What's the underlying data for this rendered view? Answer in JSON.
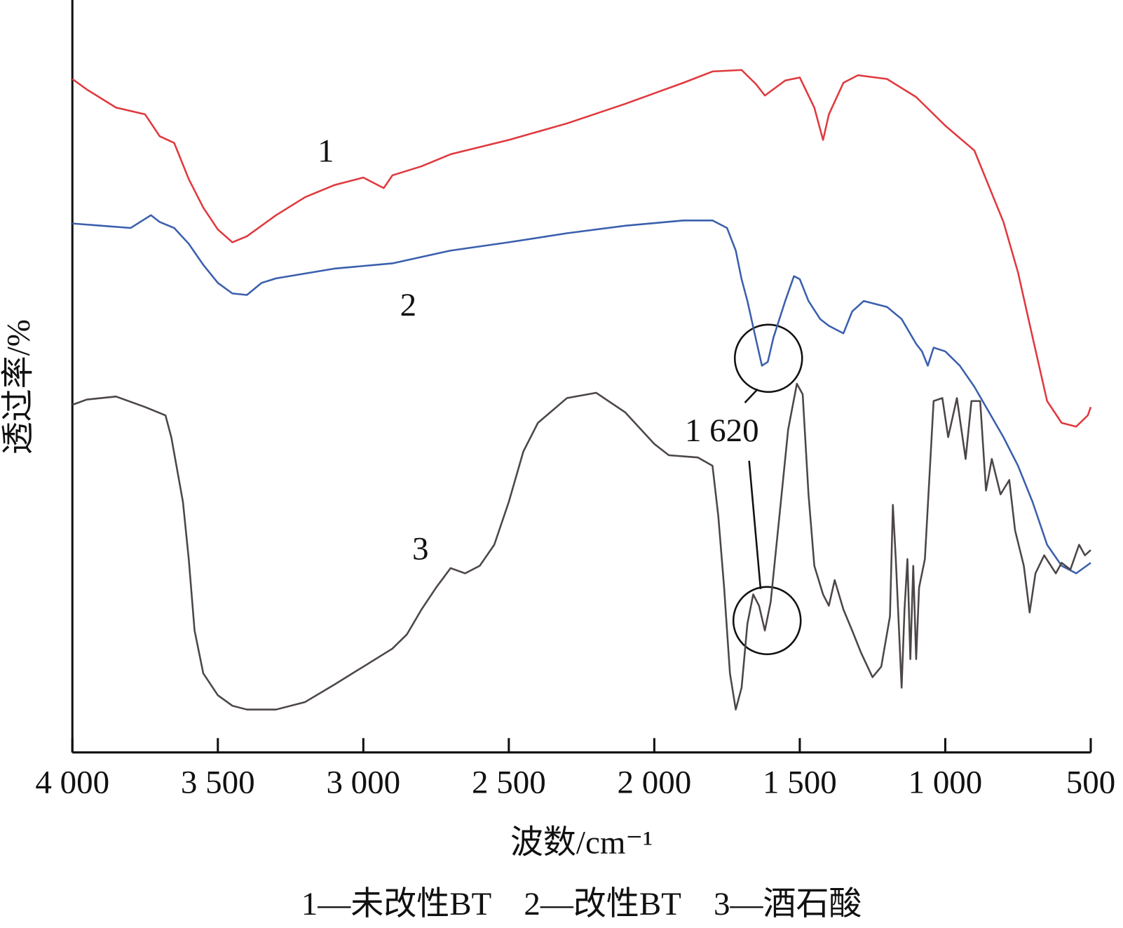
{
  "chart_data": {
    "type": "line",
    "xlabel": "波数/cm⁻¹",
    "ylabel": "透过率/%",
    "caption": "1—未改性BT　2—改性BT　3—酒石酸",
    "xlim": [
      4000,
      500
    ],
    "ylim": [
      0,
      100
    ],
    "xticks": [
      {
        "value": 4000,
        "label": "4 000"
      },
      {
        "value": 3500,
        "label": "3 500"
      },
      {
        "value": 3000,
        "label": "3 000"
      },
      {
        "value": 2500,
        "label": "2 500"
      },
      {
        "value": 2000,
        "label": "2 000"
      },
      {
        "value": 1500,
        "label": "1 500"
      },
      {
        "value": 1000,
        "label": "1 000"
      },
      500
    ],
    "annotations": [
      {
        "label": "1 620",
        "x": 1620
      }
    ],
    "series": [
      {
        "label": "1",
        "color": "#e0393e",
        "x": [
          4000,
          3950,
          3850,
          3750,
          3700,
          3650,
          3600,
          3550,
          3500,
          3450,
          3400,
          3300,
          3200,
          3100,
          3000,
          2930,
          2900,
          2800,
          2700,
          2500,
          2300,
          2100,
          1900,
          1800,
          1700,
          1650,
          1620,
          1550,
          1500,
          1450,
          1420,
          1400,
          1350,
          1300,
          1200,
          1100,
          1000,
          900,
          800,
          750,
          700,
          650,
          600,
          550,
          510,
          500
        ],
        "values": [
          89.5,
          88.1,
          85.7,
          84.8,
          81.9,
          81.0,
          76.2,
          72.4,
          69.5,
          67.8,
          68.6,
          71.4,
          73.8,
          75.4,
          76.4,
          75.0,
          76.7,
          77.9,
          79.5,
          81.4,
          83.6,
          86.2,
          89.0,
          90.5,
          90.7,
          88.8,
          87.3,
          89.3,
          89.7,
          85.7,
          81.4,
          84.8,
          89.0,
          90.0,
          89.5,
          87.1,
          83.3,
          80.0,
          70.5,
          63.8,
          55.2,
          46.7,
          43.8,
          43.3,
          44.8,
          45.9
        ]
      },
      {
        "label": "2",
        "color": "#3b5fad",
        "x": [
          4000,
          3900,
          3800,
          3730,
          3700,
          3650,
          3600,
          3550,
          3500,
          3450,
          3400,
          3350,
          3300,
          3100,
          2900,
          2700,
          2500,
          2300,
          2100,
          1900,
          1800,
          1750,
          1720,
          1700,
          1680,
          1650,
          1630,
          1610,
          1590,
          1550,
          1520,
          1500,
          1470,
          1430,
          1400,
          1350,
          1320,
          1280,
          1200,
          1150,
          1100,
          1080,
          1060,
          1040,
          1000,
          950,
          900,
          800,
          750,
          700,
          650,
          600,
          550,
          500
        ],
        "values": [
          70.3,
          70.0,
          69.7,
          71.4,
          70.5,
          69.7,
          67.6,
          64.8,
          62.4,
          61.0,
          60.8,
          62.4,
          63.0,
          64.3,
          65.0,
          66.7,
          67.8,
          69.0,
          70.0,
          70.7,
          70.7,
          69.7,
          66.7,
          62.9,
          60.0,
          54.8,
          51.4,
          51.9,
          55.2,
          60.0,
          63.3,
          62.9,
          60.0,
          57.6,
          56.7,
          55.7,
          58.6,
          60.0,
          59.2,
          57.6,
          54.3,
          53.3,
          51.4,
          53.8,
          53.3,
          51.4,
          48.6,
          41.9,
          38.1,
          33.3,
          27.6,
          24.8,
          23.8,
          25.2
        ]
      },
      {
        "label": "3",
        "color": "#4d4646",
        "x": [
          4000,
          3950,
          3850,
          3750,
          3680,
          3660,
          3620,
          3600,
          3580,
          3550,
          3500,
          3450,
          3400,
          3300,
          3200,
          3100,
          3000,
          2950,
          2900,
          2850,
          2800,
          2750,
          2700,
          2650,
          2600,
          2550,
          2500,
          2450,
          2400,
          2300,
          2200,
          2100,
          2000,
          1950,
          1850,
          1800,
          1780,
          1760,
          1740,
          1720,
          1700,
          1680,
          1660,
          1640,
          1620,
          1600,
          1570,
          1540,
          1510,
          1490,
          1470,
          1450,
          1420,
          1400,
          1380,
          1350,
          1320,
          1290,
          1250,
          1220,
          1190,
          1180,
          1170,
          1150,
          1140,
          1130,
          1120,
          1110,
          1100,
          1090,
          1070,
          1040,
          1010,
          990,
          960,
          930,
          910,
          880,
          860,
          840,
          810,
          780,
          760,
          730,
          710,
          690,
          660,
          620,
          600,
          570,
          540,
          520,
          500
        ],
        "values": [
          46.2,
          46.9,
          47.3,
          45.9,
          44.8,
          41.9,
          33.3,
          25.7,
          16.2,
          10.5,
          7.6,
          6.2,
          5.7,
          5.7,
          6.7,
          9.0,
          11.4,
          12.6,
          13.8,
          15.7,
          19.0,
          21.9,
          24.5,
          23.8,
          24.8,
          27.6,
          33.3,
          40.0,
          43.8,
          47.1,
          47.8,
          45.2,
          41.0,
          39.5,
          39.2,
          38.1,
          31.4,
          21.9,
          10.5,
          5.7,
          8.6,
          17.1,
          21.0,
          19.5,
          16.2,
          20.0,
          31.4,
          42.9,
          49.0,
          47.6,
          34.3,
          24.8,
          21.0,
          19.5,
          22.9,
          19.0,
          16.2,
          13.3,
          10.0,
          11.4,
          18.1,
          32.9,
          25.7,
          8.6,
          19.0,
          25.7,
          12.4,
          24.8,
          12.4,
          21.9,
          25.7,
          46.7,
          47.1,
          41.9,
          47.1,
          39.0,
          46.7,
          46.7,
          34.8,
          39.0,
          34.3,
          36.2,
          29.5,
          24.8,
          18.6,
          23.8,
          26.2,
          23.8,
          25.2,
          24.3,
          27.6,
          26.2,
          26.9
        ]
      }
    ]
  }
}
